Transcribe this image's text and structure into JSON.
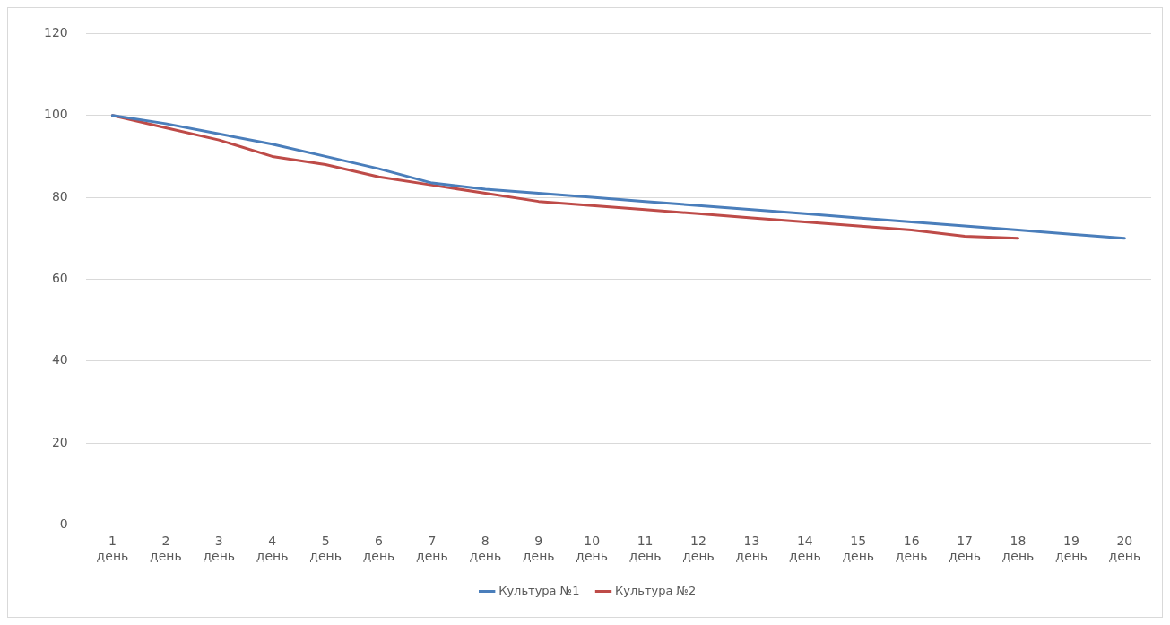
{
  "chart_data": {
    "type": "line",
    "categories": [
      "1 день",
      "2 день",
      "3 день",
      "4 день",
      "5 день",
      "6 день",
      "7 день",
      "8 день",
      "9 день",
      "10 день",
      "11 день",
      "12 день",
      "13 день",
      "14 день",
      "15 день",
      "16 день",
      "17 день",
      "18 день",
      "19 день",
      "20 день"
    ],
    "series": [
      {
        "name": "Культура №1",
        "color": "#4a7ebb",
        "values": [
          100,
          98,
          95.5,
          93,
          90,
          87,
          83.5,
          82,
          81,
          80,
          79,
          78,
          77,
          76,
          75,
          74,
          73,
          72,
          71,
          70
        ]
      },
      {
        "name": "Культура №2",
        "color": "#be4b48",
        "values": [
          100,
          97,
          94,
          90,
          88,
          85,
          83,
          81,
          79,
          78,
          77,
          76,
          75,
          74,
          73,
          72,
          70.5,
          70,
          null,
          null
        ]
      }
    ],
    "ylim": [
      0,
      120
    ],
    "yticks": [
      0,
      20,
      40,
      60,
      80,
      100,
      120
    ],
    "grid": "y",
    "legend": "bottom",
    "marker": "none",
    "line_style": "solid"
  }
}
